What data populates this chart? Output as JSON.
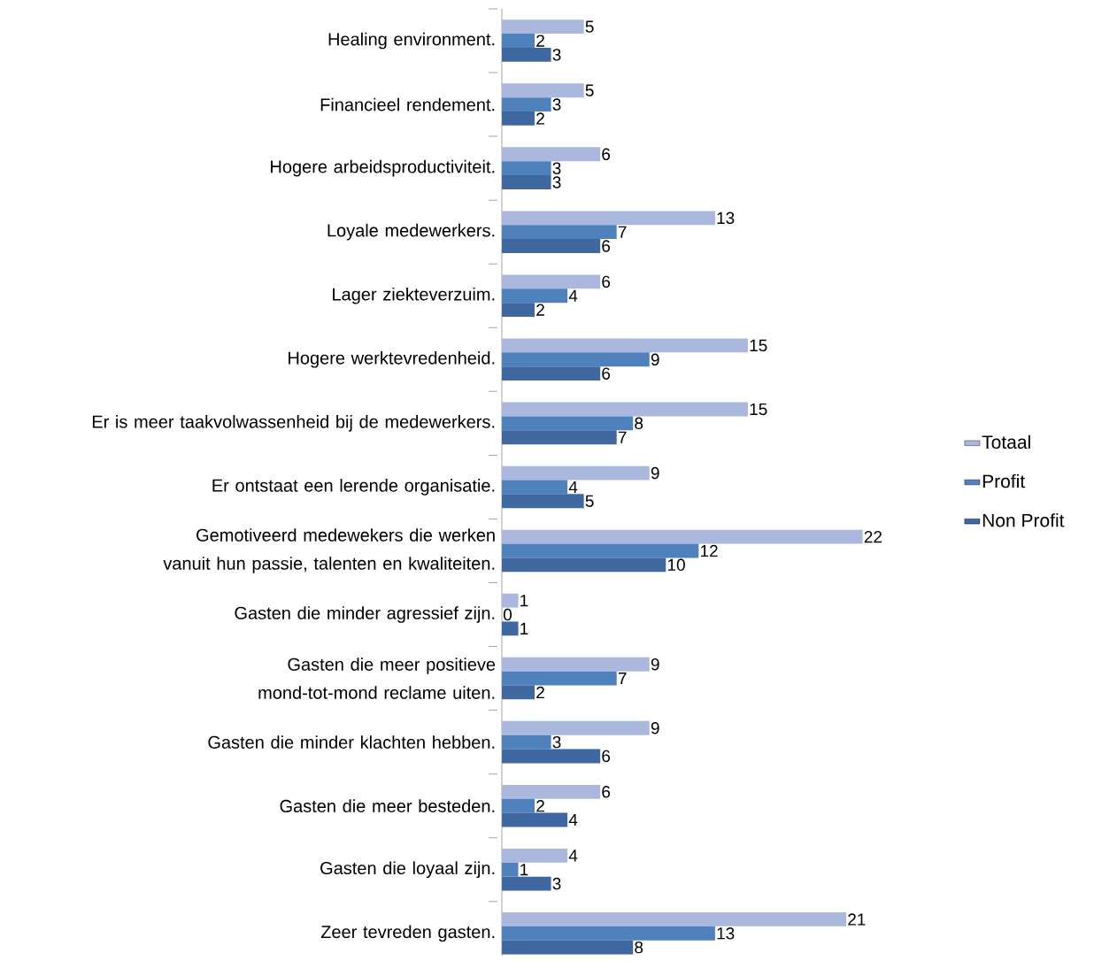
{
  "chart_data": {
    "type": "bar",
    "orientation": "horizontal",
    "data_labels": true,
    "legend": "right",
    "categories": [
      "Healing environment.",
      "Financieel rendement.",
      "Hogere arbeidsproductiviteit.",
      "Loyale medewerkers.",
      "Lager ziekteverzuim.",
      "Hogere werktevredenheid.",
      "Er is meer taakvolwassenheid bij de medewerkers.",
      "Er ontstaat een lerende organisatie.",
      "Gemotiveerd medewekers die werken vanuit hun passie, talenten en kwaliteiten.",
      "Gasten die minder agressief zijn.",
      "Gasten die meer positieve mond-tot-mond reclame uiten.",
      "Gasten die minder klachten hebben.",
      "Gasten die meer besteden.",
      "Gasten die loyaal zijn.",
      "Zeer tevreden gasten."
    ],
    "series": [
      {
        "name": "Totaal",
        "color": "#a9b8dc",
        "values": [
          5,
          5,
          6,
          13,
          6,
          15,
          15,
          9,
          22,
          1,
          9,
          9,
          6,
          4,
          21
        ]
      },
      {
        "name": "Profit",
        "color": "#4f81bd",
        "values": [
          2,
          3,
          3,
          7,
          4,
          9,
          8,
          4,
          12,
          0,
          7,
          3,
          2,
          1,
          13
        ]
      },
      {
        "name": "Non Profit",
        "color": "#3f67a0",
        "values": [
          3,
          2,
          3,
          6,
          2,
          6,
          7,
          5,
          10,
          1,
          2,
          6,
          4,
          3,
          8
        ]
      }
    ]
  }
}
